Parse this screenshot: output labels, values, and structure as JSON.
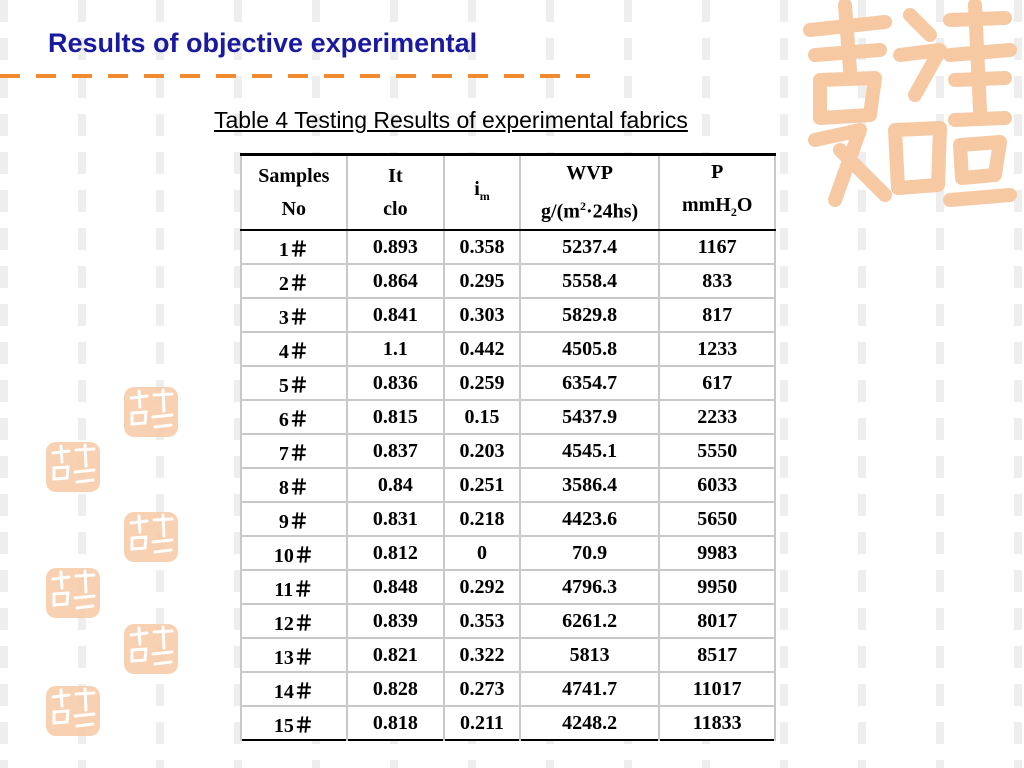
{
  "slide": {
    "title": "Results of objective experimental",
    "caption": "Table 4 Testing Results of experimental fabrics",
    "colors": {
      "title": "#1a1aa0",
      "accent": "#f08a2c",
      "seal": "#f6c9a3"
    }
  },
  "table": {
    "headers": {
      "samples": [
        "Samples",
        "No"
      ],
      "it": [
        "It",
        "clo"
      ],
      "im": {
        "base": "i",
        "sub": "m"
      },
      "wvp": {
        "line1": "WVP",
        "line2_pre": "g/(m",
        "line2_sup": "2",
        "line2_post": "·24hs)"
      },
      "p": {
        "line1": "P",
        "line2_pre": "mmH",
        "line2_sub": "2",
        "line2_post": "O"
      }
    },
    "rows": [
      [
        "1＃",
        "0.893",
        "0.358",
        "5237.4",
        "1167"
      ],
      [
        "2＃",
        "0.864",
        "0.295",
        "5558.4",
        "833"
      ],
      [
        "3＃",
        "0.841",
        "0.303",
        "5829.8",
        "817"
      ],
      [
        "4＃",
        "1.1",
        "0.442",
        "4505.8",
        "1233"
      ],
      [
        "5＃",
        "0.836",
        "0.259",
        "6354.7",
        "617"
      ],
      [
        "6＃",
        "0.815",
        "0.15",
        "5437.9",
        "2233"
      ],
      [
        "7＃",
        "0.837",
        "0.203",
        "4545.1",
        "5550"
      ],
      [
        "8＃",
        "0.84",
        "0.251",
        "3586.4",
        "6033"
      ],
      [
        "9＃",
        "0.831",
        "0.218",
        "4423.6",
        "5650"
      ],
      [
        "10＃",
        "0.812",
        "0",
        "70.9",
        "9983"
      ],
      [
        "11＃",
        "0.848",
        "0.292",
        "4796.3",
        "9950"
      ],
      [
        "12＃",
        "0.839",
        "0.353",
        "6261.2",
        "8017"
      ],
      [
        "13＃",
        "0.821",
        "0.322",
        "5813",
        "8517"
      ],
      [
        "14＃",
        "0.828",
        "0.273",
        "4741.7",
        "11017"
      ],
      [
        "15＃",
        "0.818",
        "0.211",
        "4248.2",
        "11833"
      ]
    ]
  }
}
